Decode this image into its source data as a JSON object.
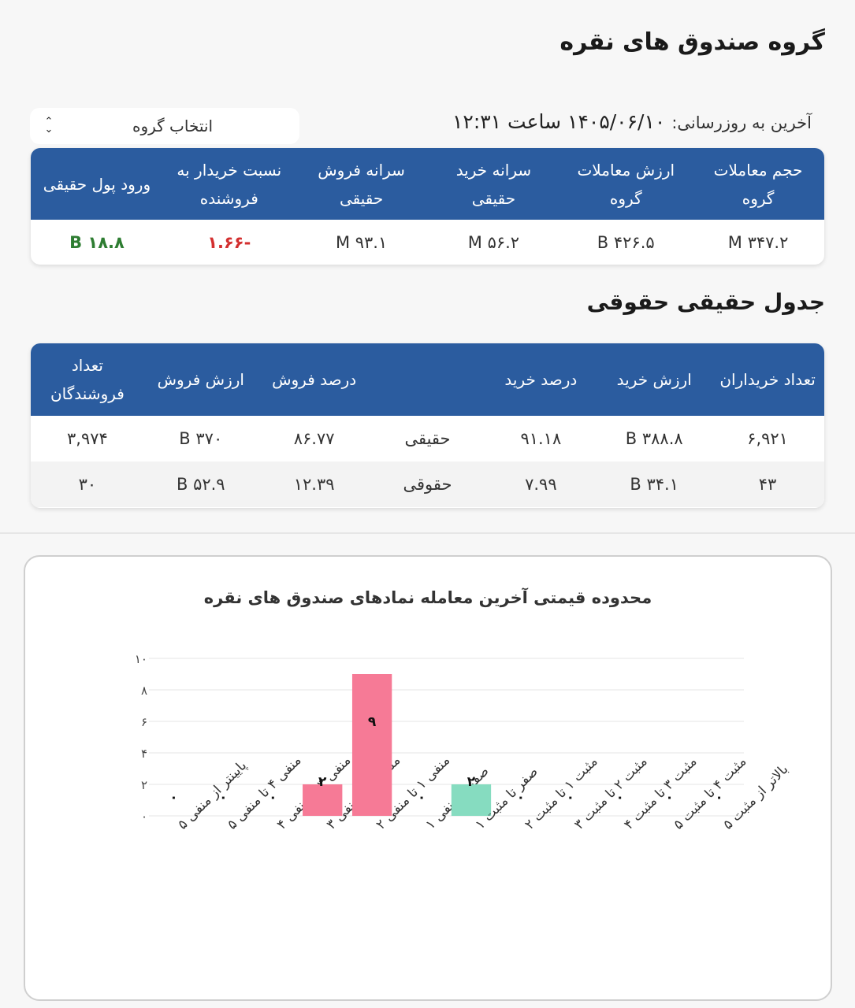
{
  "page_title": "گروه صندوق های نقره",
  "last_update": {
    "label": "آخرین به روزرسانی:",
    "value": "۱۴۰۵/۰۶/۱۰ ساعت ۱۲:۳۱"
  },
  "group_select": {
    "label": "انتخاب گروه",
    "icon": "unfold-chevrons-icon"
  },
  "summary_table": {
    "headers": [
      "حجم معاملات گروه",
      "ارزش معاملات گروه",
      "سرانه خرید حقیقی",
      "سرانه فروش حقیقی",
      "نسبت خریدار به فروشنده",
      "ورود پول حقیقی"
    ],
    "row": [
      "۳۴۷.۲ M",
      "۴۲۶.۵ B",
      "۵۶.۲ M",
      "۹۳.۱ M",
      "-۱.۶۶",
      "۱۸.۸ B"
    ],
    "colors": {
      "negative": "#d32f2f",
      "positive": "#2e7d32",
      "header_bg": "#2b5c9f"
    }
  },
  "section_title": "جدول حقیقی حقوقی",
  "legal_table": {
    "headers": [
      "تعداد خریداران",
      "ارزش خرید",
      "درصد خرید",
      "",
      "درصد فروش",
      "ارزش فروش",
      "تعداد فروشندگان"
    ],
    "rows": [
      [
        "۶,۹۲۱",
        "۳۸۸.۸ B",
        "۹۱.۱۸",
        "حقیقی",
        "۸۶.۷۷",
        "۳۷۰ B",
        "۳,۹۷۴"
      ],
      [
        "۴۳",
        "۳۴.۱ B",
        "۷.۹۹",
        "حقوقی",
        "۱۲.۳۹",
        "۵۲.۹ B",
        "۳۰"
      ]
    ]
  },
  "chart_data": {
    "type": "bar",
    "title": "محدوده قیمتی آخرین معامله نمادهای صندوق های نقره",
    "categories": [
      "پایینتر از منفی ۵",
      "منفی ۴ تا منفی ۵",
      "منفی ۳ تا منفی ۴",
      "منفی ۲ تا منفی ۳",
      "منفی ۱ تا منفی ۲",
      "صفر تا منفی ۱",
      "صفر تا مثبت ۱",
      "مثبت ۱ تا مثبت ۲",
      "مثبت ۲ تا مثبت ۳",
      "مثبت ۳ تا مثبت ۴",
      "مثبت ۴ تا مثبت ۵",
      "بالاتر از مثبت ۵"
    ],
    "values": [
      0,
      0,
      0,
      2,
      9,
      0,
      2,
      0,
      0,
      0,
      0,
      0
    ],
    "value_labels": [
      "۰",
      "۰",
      "۰",
      "۲",
      "۹",
      "۰",
      "۲",
      "۰",
      "۰",
      "۰",
      "۰",
      "۰"
    ],
    "ylim": [
      0,
      10
    ],
    "yticks": [
      "۰",
      "۲",
      "۴",
      "۶",
      "۸",
      "۱۰"
    ],
    "xlabel": "",
    "ylabel": "",
    "grid": true,
    "colors": [
      "#f67a96",
      "#f67a96",
      "#f67a96",
      "#f67a96",
      "#f67a96",
      "#f67a96",
      "#86dcc0",
      "#86dcc0",
      "#86dcc0",
      "#86dcc0",
      "#86dcc0",
      "#86dcc0"
    ]
  }
}
